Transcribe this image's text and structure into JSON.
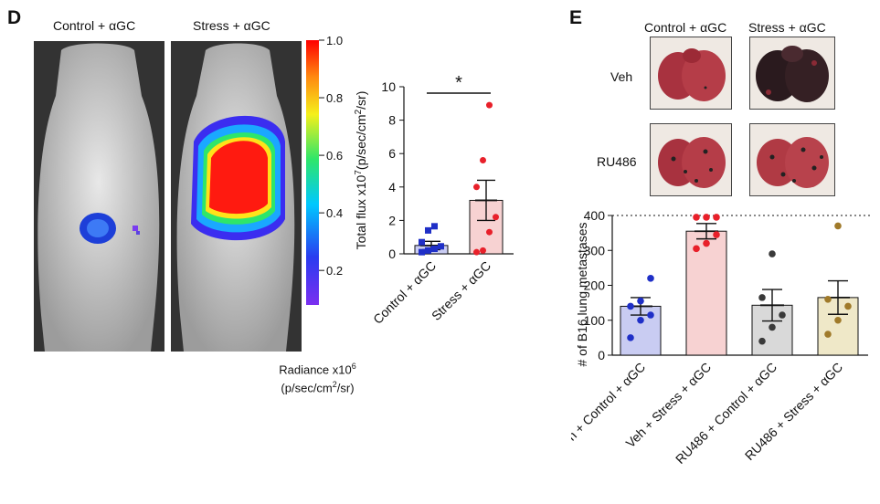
{
  "panel_d": {
    "letter": "D",
    "image_labels": [
      "Control + αGC",
      "Stress + αGC"
    ],
    "colorbar": {
      "ticks": [
        0.2,
        0.4,
        0.6,
        0.8,
        1.0
      ],
      "tick_labels": [
        "0.2",
        "0.4",
        "0.6",
        "0.8",
        "1.0"
      ],
      "label_line1": "Radiance x10",
      "label_sup": "6",
      "label_line2": "(p/sec/cm",
      "label_line2_sup": "2",
      "label_line2_end": "/sr)"
    }
  },
  "panel_e": {
    "letter": "E",
    "col_labels": [
      "Control + αGC",
      "Stress + αGC"
    ],
    "row_labels": [
      "Veh",
      "RU486"
    ]
  },
  "chart_data": [
    {
      "type": "bar",
      "ylabel_main": "Total flux x10",
      "ylabel_sup": "7",
      "ylabel_units": "(p/sec/cm",
      "ylabel_units_sup": "2",
      "ylabel_units_end": "/sr)",
      "categories": [
        "Control + αGC",
        "Stress + αGC"
      ],
      "ylim": [
        0,
        10
      ],
      "yticks": [
        0,
        2,
        4,
        6,
        8,
        10
      ],
      "series": [
        {
          "values": [
            0.5,
            3.2
          ],
          "sem": [
            0.25,
            1.2
          ]
        }
      ],
      "points": [
        [
          0.1,
          0.2,
          0.3,
          0.45,
          0.7,
          1.4,
          1.65
        ],
        [
          0.1,
          0.2,
          1.3,
          2.2,
          4.0,
          5.6,
          8.9
        ]
      ],
      "colors": {
        "bar_fill": [
          "#c9ccf2",
          "#f7d2d2"
        ],
        "markers": [
          "#1f2fc7",
          "#e8202a"
        ]
      },
      "significance": "*"
    },
    {
      "type": "bar",
      "ylabel": "# of B16 lung metastases",
      "categories": [
        "Veh + Control + αGC",
        "Veh + Stress + αGC",
        "RU486 + Control + αGC",
        "RU486 + Stress + αGC"
      ],
      "ylim": [
        0,
        400
      ],
      "yticks": [
        0,
        100,
        200,
        300,
        400
      ],
      "series": [
        {
          "values": [
            140,
            355,
            143,
            165
          ],
          "sem": [
            25,
            22,
            45,
            48
          ]
        }
      ],
      "points": [
        [
          50,
          100,
          115,
          140,
          155,
          220
        ],
        [
          305,
          320,
          345,
          395,
          395,
          395
        ],
        [
          40,
          80,
          115,
          165,
          290
        ],
        [
          60,
          100,
          140,
          160,
          370
        ]
      ],
      "reference_line": 400,
      "colors": {
        "bar_fill": [
          "#c9ccf2",
          "#f7d2d2",
          "#d9d9d9",
          "#efe8c8"
        ],
        "markers": [
          "#1f2fc7",
          "#e8202a",
          "#3a3a3a",
          "#a07a2a"
        ]
      }
    }
  ]
}
